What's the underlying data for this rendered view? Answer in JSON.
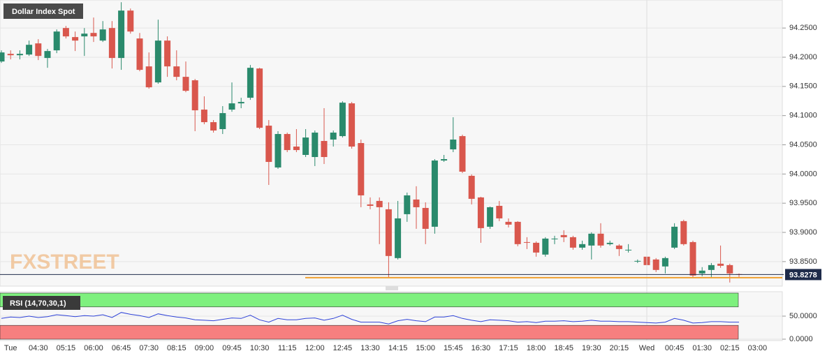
{
  "chart_data": [
    {
      "type": "candlestick",
      "title": "Dollar Index Spot",
      "watermark": "FXSTREET",
      "categories": [
        null,
        "Tue",
        null,
        null,
        "04:30",
        null,
        null,
        "05:15",
        null,
        null,
        "06:00",
        null,
        null,
        "06:45",
        null,
        null,
        "07:30",
        null,
        null,
        "08:15",
        null,
        null,
        "09:00",
        null,
        null,
        "09:45",
        null,
        null,
        "10:30",
        null,
        null,
        "11:15",
        null,
        null,
        "12:00",
        null,
        null,
        "12:45",
        null,
        null,
        "13:30",
        null,
        null,
        "14:15",
        null,
        null,
        "15:00",
        null,
        null,
        "15:45",
        null,
        null,
        "16:30",
        null,
        null,
        "17:15",
        null,
        null,
        "18:00",
        null,
        null,
        "18:45",
        null,
        null,
        "19:30",
        null,
        null,
        "20:15",
        null,
        null,
        "Wed",
        null,
        null,
        "00:45",
        null,
        null,
        "01:30",
        null,
        null,
        "02:15",
        null,
        null,
        "03:00"
      ],
      "open": [
        94.1927,
        94.2058,
        94.2034,
        94.2046,
        94.2237,
        94.1987,
        94.2118,
        94.25,
        94.2345,
        94.2357,
        94.2416,
        94.2285,
        94.25,
        94.1987,
        94.2799,
        94.2321,
        94.1843,
        94.1569,
        94.2285,
        94.1843,
        94.1664,
        94.1605,
        94.1103,
        94.0888,
        94.0769,
        94.1103,
        94.121,
        94.1306,
        94.1807,
        94.0828,
        94.0112,
        94.0685,
        94.047,
        94.0327,
        94.0291,
        94.0566,
        94.059,
        94.0649,
        94.121,
        94.053,
        93.9479,
        93.9539,
        93.9396,
        93.856,
        93.9312,
        93.9563,
        93.9419,
        93.9097,
        94.0231,
        94.0422,
        94.0649,
        93.9969,
        93.9599,
        93.9097,
        93.9455,
        93.9181,
        93.9181,
        93.8834,
        93.8822,
        93.862,
        93.8882,
        93.8954,
        93.8918,
        93.8739,
        93.8775,
        93.8978,
        93.8799,
        93.8775,
        93.8703,
        93.85,
        93.8584,
        93.8536,
        93.8417,
        93.8739,
        93.9193,
        93.8834,
        93.8297,
        93.8357,
        93.8464,
        93.844,
        93.8285,
        null,
        null
      ],
      "high": [
        94.2118,
        94.2118,
        94.2118,
        94.2285,
        94.2309,
        94.2142,
        94.2476,
        94.2536,
        94.244,
        94.25,
        94.2679,
        94.2619,
        94.2619,
        94.2942,
        94.2834,
        94.2416,
        94.2082,
        94.2643,
        94.2357,
        94.2118,
        94.1927,
        94.1628,
        94.133,
        94.0924,
        94.1163,
        94.1569,
        94.1306,
        94.1867,
        94.1819,
        94.0924,
        94.0733,
        94.0709,
        94.0769,
        94.0769,
        94.0745,
        94.1127,
        94.0745,
        94.1246,
        94.1234,
        94.059,
        93.9599,
        93.9599,
        93.9515,
        93.9539,
        93.9682,
        93.979,
        93.9515,
        94.0255,
        94.0327,
        94.0972,
        94.0673,
        93.9993,
        93.961,
        93.9443,
        93.9539,
        93.924,
        93.9193,
        93.8918,
        93.8846,
        93.8918,
        93.8942,
        93.9037,
        93.8942,
        93.8858,
        93.9002,
        93.9157,
        93.8858,
        93.8799,
        93.8799,
        93.8536,
        93.8608,
        93.856,
        93.8584,
        93.9157,
        93.9217,
        93.8858,
        93.8405,
        93.8476,
        93.8775,
        93.8464,
        93.8297,
        null,
        null
      ],
      "low": [
        94.1903,
        94.1963,
        94.1963,
        94.2022,
        94.1951,
        94.1819,
        94.207,
        94.2321,
        94.2106,
        94.2022,
        94.2261,
        94.2261,
        94.1807,
        94.1784,
        94.2404,
        94.176,
        94.1461,
        94.1545,
        94.1664,
        94.1605,
        94.1401,
        94.0733,
        94.0852,
        94.0709,
        94.0685,
        94.1067,
        94.1127,
        94.127,
        94.0769,
        93.9813,
        94.0088,
        94.0375,
        94.0375,
        94.0291,
        94.0136,
        94.0172,
        94.047,
        94.0625,
        94.0434,
        93.9431,
        93.9396,
        93.8799,
        93.8225,
        93.8536,
        93.9181,
        93.9061,
        93.8799,
        93.8978,
        94.0207,
        94.0375,
        94.0016,
        93.9479,
        93.8822,
        93.9061,
        93.9193,
        93.9085,
        93.8763,
        93.8715,
        93.8584,
        93.8584,
        93.8799,
        93.8834,
        93.8703,
        93.8703,
        93.8536,
        93.8739,
        93.8775,
        93.8596,
        93.8655,
        93.8476,
        93.8381,
        93.8321,
        93.8297,
        93.8715,
        93.8775,
        93.8225,
        93.8249,
        93.8225,
        93.8393,
        93.8142,
        93.8237,
        null,
        null
      ],
      "close": [
        94.2082,
        94.2034,
        94.2058,
        94.2213,
        94.2022,
        94.2106,
        94.244,
        94.2357,
        94.2285,
        94.2404,
        94.2357,
        94.2476,
        94.1987,
        94.2799,
        94.244,
        94.1784,
        94.1485,
        94.2285,
        94.1843,
        94.1664,
        94.1425,
        94.1091,
        94.0888,
        94.0745,
        94.1043,
        94.121,
        94.1234,
        94.1819,
        94.0792,
        94.0207,
        94.0685,
        94.041,
        94.041,
        94.0625,
        94.0709,
        94.0291,
        94.0709,
        94.1222,
        94.047,
        93.9634,
        93.9455,
        93.9431,
        93.8596,
        93.924,
        93.9634,
        93.9431,
        93.9061,
        94.0231,
        94.0255,
        94.059,
        94.004,
        93.9575,
        93.9073,
        93.9431,
        93.924,
        93.9133,
        93.8799,
        93.8822,
        93.8655,
        93.8894,
        93.8894,
        93.8918,
        93.8739,
        93.8799,
        93.8978,
        93.8775,
        93.8822,
        93.8715,
        93.8703,
        93.8512,
        93.844,
        93.8357,
        93.856,
        93.9097,
        93.8799,
        93.8261,
        93.8345,
        93.844,
        93.8428,
        93.8297,
        93.8278,
        null,
        null
      ],
      "up_color": "#2a8a6c",
      "down_color": "#d9574d",
      "ylim": [
        93.808,
        94.298
      ],
      "yticks": [
        {
          "value": 93.85,
          "label": "93.8500"
        },
        {
          "value": 93.9,
          "label": "93.9000"
        },
        {
          "value": 93.95,
          "label": "93.9500"
        },
        {
          "value": 94.0,
          "label": "94.0000"
        },
        {
          "value": 94.05,
          "label": "94.0500"
        },
        {
          "value": 94.1,
          "label": "94.1000"
        },
        {
          "value": 94.15,
          "label": "94.1500"
        },
        {
          "value": 94.2,
          "label": "94.2000"
        },
        {
          "value": 94.25,
          "label": "94.2500"
        }
      ],
      "last_price": 93.8278,
      "support_line": 93.8225,
      "support_color": "#f0a030",
      "grid": true
    },
    {
      "type": "line",
      "title": "RSI (14,70,30,1)",
      "color": "#2f43d8",
      "values": [
        45,
        48,
        47,
        50,
        47,
        49,
        53,
        51,
        49,
        51,
        50,
        53,
        47,
        58,
        54,
        51,
        47,
        55,
        51,
        48,
        46,
        42,
        41,
        40,
        43,
        46,
        45,
        52,
        42,
        37,
        45,
        42,
        42,
        45,
        46,
        41,
        45,
        52,
        43,
        37,
        37,
        37,
        33,
        40,
        43,
        40,
        38,
        48,
        48,
        51,
        45,
        41,
        38,
        42,
        41,
        40,
        37,
        38,
        36,
        39,
        39,
        40,
        38,
        39,
        41,
        39,
        39,
        38,
        38,
        37,
        36,
        35,
        37,
        45,
        41,
        35,
        36,
        38,
        38,
        37,
        37,
        null,
        null
      ],
      "bands": [
        {
          "from": 70,
          "to": 100,
          "color": "#7ef07e"
        },
        {
          "from": 0,
          "to": 30,
          "color": "#f77f7f"
        }
      ],
      "ylim": [
        -3,
        103
      ],
      "yticks": [
        {
          "value": 0,
          "label": "0.0000"
        },
        {
          "value": 50,
          "label": "50.0000"
        }
      ],
      "grid": true
    }
  ]
}
